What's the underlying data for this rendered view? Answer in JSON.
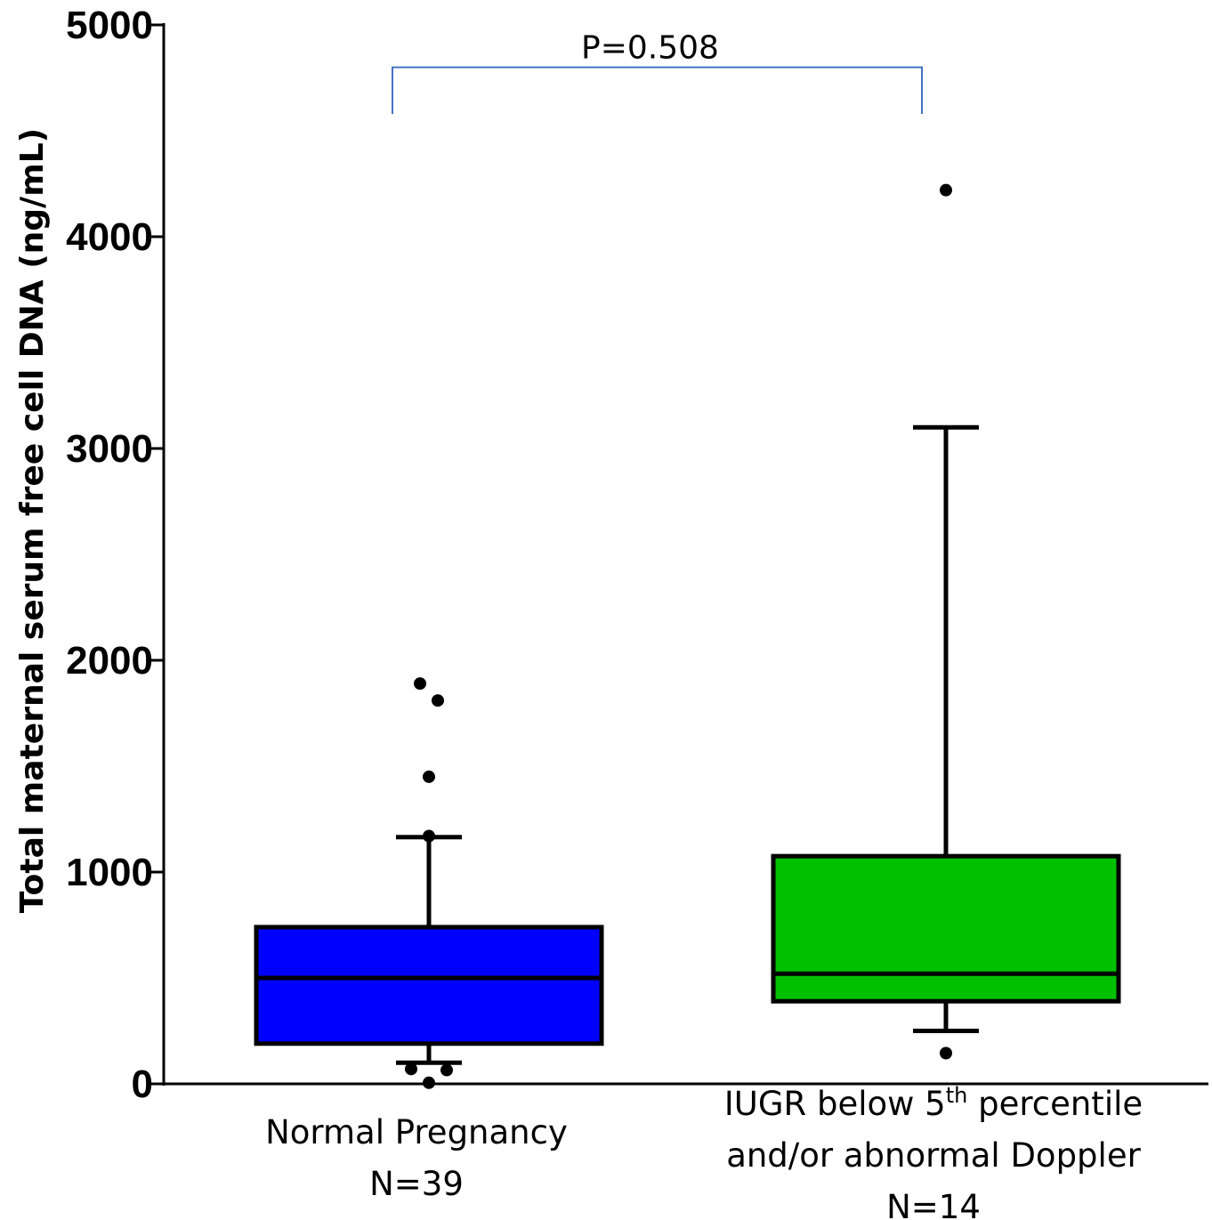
{
  "chart_data": {
    "type": "box",
    "title": "",
    "xlabel": "",
    "ylabel": "Total maternal serum free cell DNA (ng/mL)",
    "ylim": [
      0,
      5000
    ],
    "yticks": [
      0,
      1000,
      2000,
      3000,
      4000,
      5000
    ],
    "tick_labels": [
      "0",
      "1000",
      "2000",
      "3000",
      "4000",
      "5000"
    ],
    "grid": false,
    "groups": [
      {
        "label_lines": [
          {
            "text": "Normal Pregnancy"
          },
          {
            "text": "N=39"
          }
        ],
        "color": "#0000ff",
        "whisker_low": 100,
        "q1": 190,
        "median": 500,
        "q3": 740,
        "whisker_high": 1165,
        "outliers": [
          1890,
          1810,
          1450,
          1170,
          70,
          65,
          5
        ]
      },
      {
        "label_lines": [
          {
            "text": "IUGR below 5",
            "sup": "th",
            "after": " percentile"
          },
          {
            "text": "and/or abnormal Doppler"
          },
          {
            "text": "N=14"
          }
        ],
        "color": "#00c000",
        "whisker_low": 250,
        "q1": 390,
        "median": 520,
        "q3": 1075,
        "whisker_high": 3100,
        "outliers": [
          4220,
          145
        ]
      }
    ],
    "annotation": {
      "text": "P=0.508",
      "color": "#4472c4",
      "bracket_top": 4800,
      "bracket_bottom": 4580
    }
  }
}
